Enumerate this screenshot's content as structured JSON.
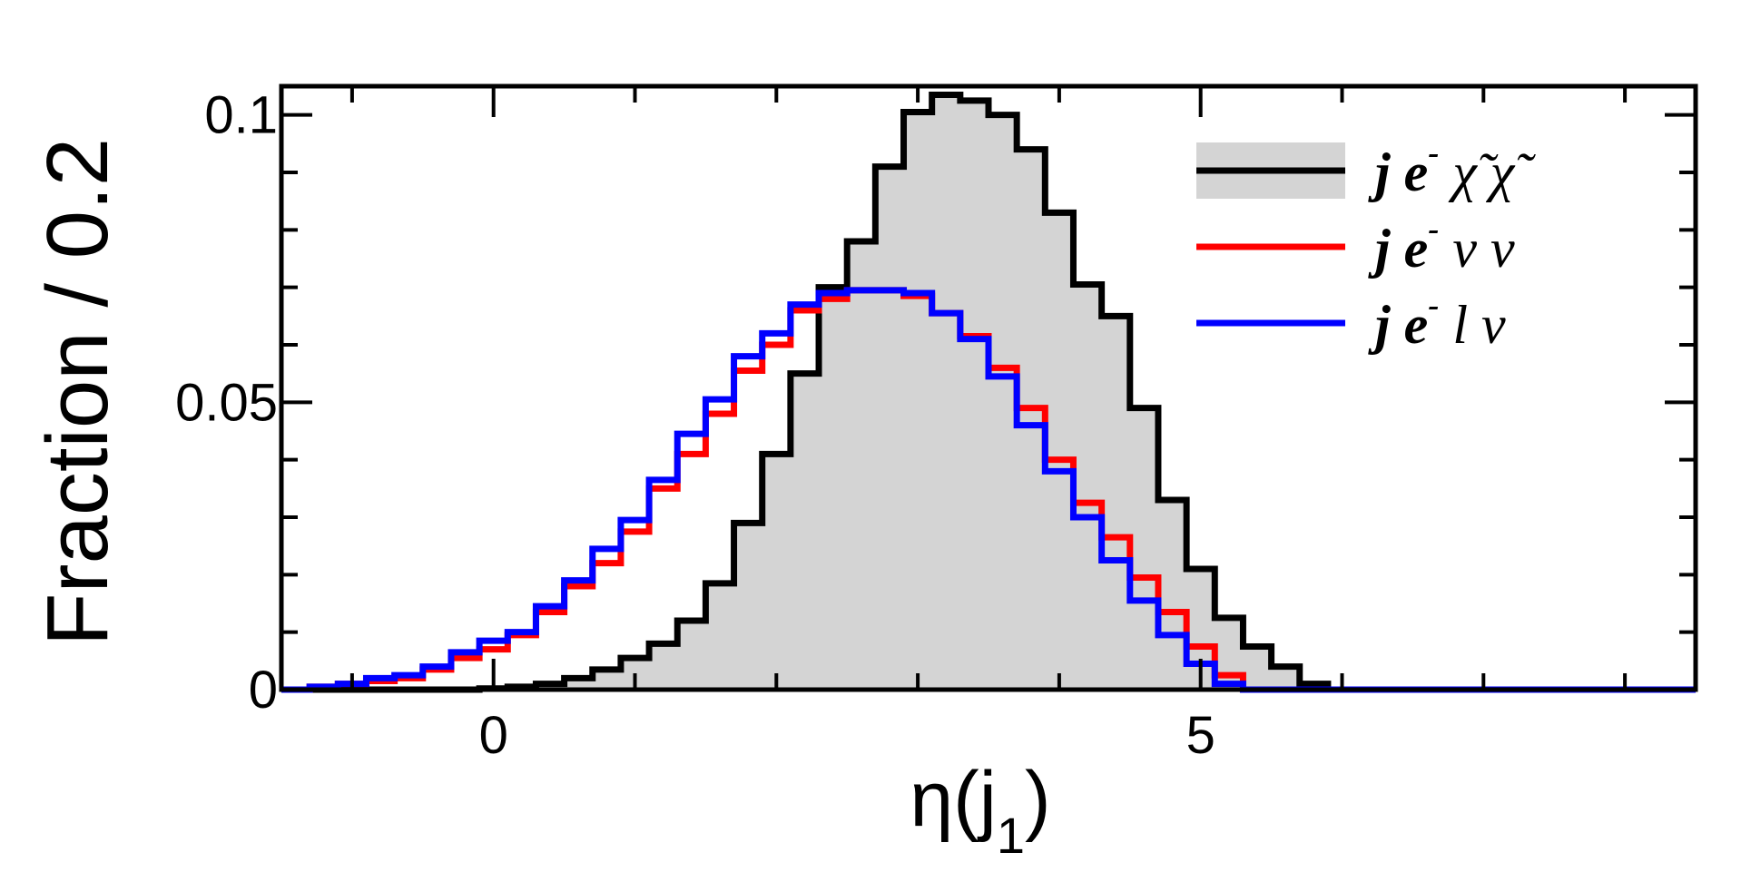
{
  "chart_data": {
    "type": "step-histogram",
    "xlabel": "η(j",
    "xlabel_sub": "1",
    "xlabel_close": ")",
    "ylabel": "Fraction / 0.2",
    "xlim": [
      -1.5,
      8.5
    ],
    "ylim": [
      0,
      0.105
    ],
    "bin_width": 0.2,
    "x_ticks": [
      0,
      5
    ],
    "x_tick_labels": [
      "0",
      "5"
    ],
    "y_ticks": [
      0,
      0.05,
      0.1
    ],
    "y_tick_labels": [
      "0",
      "0.05",
      "0.1"
    ],
    "legend_position": "top-right",
    "series": [
      {
        "name": "j e⁻ χ̃ χ̃",
        "legend_parts": [
          "j",
          "e",
          "-",
          "χ̃",
          "χ̃"
        ],
        "color": "#000000",
        "fill": "#d4d4d4",
        "bin_edges": [
          -1.5,
          -1.3,
          -1.1,
          -0.9,
          -0.7,
          -0.5,
          -0.3,
          -0.1,
          0.1,
          0.3,
          0.5,
          0.7,
          0.9,
          1.1,
          1.3,
          1.5,
          1.7,
          1.9,
          2.1,
          2.3,
          2.5,
          2.7,
          2.9,
          3.1,
          3.3,
          3.5,
          3.7,
          3.9,
          4.1,
          4.3,
          4.5,
          4.7,
          4.9,
          5.1,
          5.3,
          5.5,
          5.7,
          5.9,
          6.1,
          6.3,
          6.5,
          6.7,
          6.9,
          7.1,
          7.3,
          7.5,
          7.7,
          7.9,
          8.1,
          8.3,
          8.5
        ],
        "values": [
          0,
          0,
          0,
          0,
          0,
          0,
          0,
          0.0002,
          0.0005,
          0.001,
          0.002,
          0.0035,
          0.0055,
          0.008,
          0.012,
          0.0185,
          0.029,
          0.041,
          0.055,
          0.07,
          0.078,
          0.091,
          0.1005,
          0.1035,
          0.1025,
          0.1,
          0.094,
          0.083,
          0.0705,
          0.065,
          0.049,
          0.033,
          0.021,
          0.0125,
          0.0075,
          0.004,
          0.001,
          0,
          0,
          0,
          0,
          0,
          0,
          0,
          0,
          0,
          0,
          0,
          0,
          0
        ]
      },
      {
        "name": "j e⁻ ν ν",
        "legend_parts": [
          "j",
          "e",
          "-",
          "ν",
          "ν"
        ],
        "color": "#ff0000",
        "fill": "none",
        "bin_edges": [
          -1.5,
          -1.3,
          -1.1,
          -0.9,
          -0.7,
          -0.5,
          -0.3,
          -0.1,
          0.1,
          0.3,
          0.5,
          0.7,
          0.9,
          1.1,
          1.3,
          1.5,
          1.7,
          1.9,
          2.1,
          2.3,
          2.5,
          2.7,
          2.9,
          3.1,
          3.3,
          3.5,
          3.7,
          3.9,
          4.1,
          4.3,
          4.5,
          4.7,
          4.9,
          5.1,
          5.3,
          5.5,
          5.7,
          5.9,
          6.1,
          6.3,
          6.5,
          6.7,
          6.9,
          7.1,
          7.3,
          7.5,
          7.7,
          7.9,
          8.1,
          8.3,
          8.5
        ],
        "values": [
          0,
          0.0005,
          0.001,
          0.0015,
          0.002,
          0.0035,
          0.0055,
          0.007,
          0.0095,
          0.0135,
          0.018,
          0.022,
          0.0275,
          0.035,
          0.041,
          0.048,
          0.0555,
          0.06,
          0.066,
          0.068,
          0.0695,
          0.0695,
          0.0685,
          0.0655,
          0.0615,
          0.056,
          0.049,
          0.04,
          0.0325,
          0.0265,
          0.0195,
          0.0135,
          0.0075,
          0.0025,
          0,
          0,
          0,
          0,
          0,
          0,
          0,
          0,
          0,
          0,
          0,
          0,
          0,
          0,
          0,
          0
        ]
      },
      {
        "name": "j e⁻ l ν",
        "legend_parts": [
          "j",
          "e",
          "-",
          "l",
          "ν"
        ],
        "color": "#0000ff",
        "fill": "none",
        "bin_edges": [
          -1.5,
          -1.3,
          -1.1,
          -0.9,
          -0.7,
          -0.5,
          -0.3,
          -0.1,
          0.1,
          0.3,
          0.5,
          0.7,
          0.9,
          1.1,
          1.3,
          1.5,
          1.7,
          1.9,
          2.1,
          2.3,
          2.5,
          2.7,
          2.9,
          3.1,
          3.3,
          3.5,
          3.7,
          3.9,
          4.1,
          4.3,
          4.5,
          4.7,
          4.9,
          5.1,
          5.3,
          5.5,
          5.7,
          5.9,
          6.1,
          6.3,
          6.5,
          6.7,
          6.9,
          7.1,
          7.3,
          7.5,
          7.7,
          7.9,
          8.1,
          8.3,
          8.5
        ],
        "values": [
          0,
          0.0005,
          0.001,
          0.002,
          0.0025,
          0.004,
          0.0065,
          0.0085,
          0.01,
          0.0145,
          0.019,
          0.0245,
          0.0295,
          0.0365,
          0.0445,
          0.0505,
          0.058,
          0.062,
          0.067,
          0.069,
          0.0695,
          0.0695,
          0.069,
          0.0655,
          0.061,
          0.0545,
          0.046,
          0.038,
          0.03,
          0.0225,
          0.0155,
          0.0095,
          0.0045,
          0.001,
          0,
          0,
          0,
          0,
          0,
          0,
          0,
          0,
          0,
          0,
          0,
          0,
          0,
          0,
          0,
          0
        ]
      }
    ]
  }
}
